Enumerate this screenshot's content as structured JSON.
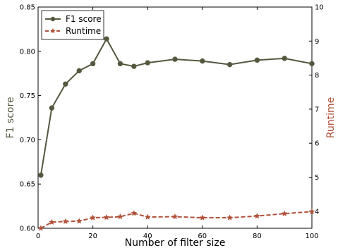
{
  "chart_data": {
    "type": "line",
    "title": "",
    "xlabel": "Number of filter size",
    "ylabel": "F1 score",
    "y2label": "Runtime",
    "xlim": [
      0,
      100
    ],
    "ylim": [
      0.6,
      0.85
    ],
    "y2lim": [
      3.5,
      10
    ],
    "xticks": [
      0,
      20,
      40,
      60,
      80,
      100
    ],
    "yticks": [
      0.6,
      0.65,
      0.7,
      0.75,
      0.8,
      0.85
    ],
    "y2ticks": [
      4,
      5,
      6,
      7,
      8,
      9,
      10
    ],
    "grid": false,
    "legend_position": "top-left",
    "x": [
      1,
      5,
      10,
      15,
      20,
      25,
      30,
      35,
      40,
      50,
      60,
      70,
      80,
      90,
      100
    ],
    "series": [
      {
        "name": "F1 score",
        "axis": "left",
        "color": "#55583f",
        "marker": "circle",
        "linestyle": "solid",
        "values": [
          0.66,
          0.736,
          0.763,
          0.778,
          0.786,
          0.814,
          0.786,
          0.783,
          0.787,
          0.791,
          0.789,
          0.785,
          0.79,
          0.792,
          0.786
        ]
      },
      {
        "name": "Runtime",
        "axis": "right",
        "color": "#b0513a",
        "marker": "star",
        "linestyle": "dashed",
        "values": [
          3.5,
          3.68,
          3.7,
          3.71,
          3.81,
          3.82,
          3.84,
          3.94,
          3.83,
          3.84,
          3.81,
          3.81,
          3.86,
          3.93,
          3.99
        ]
      }
    ],
    "colors": {
      "ylabel": "#55583f",
      "y2label": "#b0513a"
    }
  }
}
